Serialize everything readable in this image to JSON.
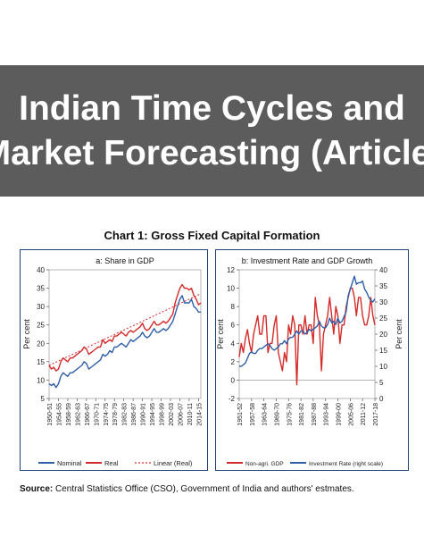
{
  "banner": {
    "line1": "Indian Time Cycles and",
    "line2": "Market Forecasting (Article)"
  },
  "chart_title": "Chart 1: Gross Fixed Capital Formation",
  "source": {
    "label": "Source:",
    "text": "Central Statistics Office (CSO), Government of India and authors' estmates."
  },
  "colors": {
    "banner_bg": "#5c5c5c",
    "nominal": "#2e5fa8",
    "real": "#d42a2a",
    "linear": "#d42a2a",
    "investment": "#2e5fa8",
    "gdp": "#d42a2a",
    "border": "#1f3f7a"
  },
  "chart_data": [
    {
      "type": "line",
      "title": "a: Share in GDP",
      "ylabel": "Per cent",
      "ylim": [
        5,
        40
      ],
      "yticks": [
        5,
        10,
        15,
        20,
        25,
        30,
        35,
        40
      ],
      "x": [
        "1950-51",
        "1951-52",
        "1952-53",
        "1953-54",
        "1954-55",
        "1955-56",
        "1956-57",
        "1957-58",
        "1958-59",
        "1959-60",
        "1960-61",
        "1961-62",
        "1962-63",
        "1963-64",
        "1964-65",
        "1965-66",
        "1966-67",
        "1967-68",
        "1968-69",
        "1969-70",
        "1970-71",
        "1971-72",
        "1972-73",
        "1973-74",
        "1974-75",
        "1975-76",
        "1976-77",
        "1977-78",
        "1978-79",
        "1979-80",
        "1980-81",
        "1981-82",
        "1982-83",
        "1983-84",
        "1984-85",
        "1985-86",
        "1986-87",
        "1987-88",
        "1988-89",
        "1989-90",
        "1990-91",
        "1991-92",
        "1992-93",
        "1993-94",
        "1994-95",
        "1995-96",
        "1996-97",
        "1997-98",
        "1998-99",
        "1999-00",
        "2000-01",
        "2001-02",
        "2002-03",
        "2003-04",
        "2004-05",
        "2005-06",
        "2006-07",
        "2007-08",
        "2008-09",
        "2009-10",
        "2010-11",
        "2011-12",
        "2012-13",
        "2013-14",
        "2014-15",
        "2015-16"
      ],
      "xtick_labels": [
        "1950-51",
        "1954-55",
        "1958-59",
        "1962-63",
        "1966-67",
        "1970-71",
        "1974-75",
        "1978-79",
        "1982-83",
        "1986-87",
        "1990-91",
        "1994-95",
        "1998-99",
        "2002-03",
        "2006-07",
        "2010-11",
        "2014-15"
      ],
      "series": [
        {
          "name": "Nominal",
          "style": "solid",
          "values": [
            9,
            8.5,
            9,
            8,
            9,
            11,
            12,
            11.5,
            11,
            12,
            12,
            12.5,
            13,
            13.5,
            14,
            15,
            14.5,
            13,
            13.5,
            14,
            14.5,
            15,
            15.5,
            17,
            16.5,
            17,
            18,
            17.5,
            19,
            19,
            19.5,
            20,
            19.5,
            19,
            20,
            21,
            20.5,
            21,
            21.5,
            22,
            23,
            22,
            21.5,
            22,
            23,
            24,
            23,
            23,
            23.5,
            24,
            23.5,
            24,
            25,
            26,
            28,
            30,
            32,
            33,
            31,
            31,
            31,
            32,
            30,
            29.5,
            28.5,
            28.5
          ]
        },
        {
          "name": "Real",
          "style": "solid",
          "values": [
            14,
            13,
            13.5,
            12.5,
            13,
            15,
            16,
            15.5,
            15,
            16,
            16,
            16.5,
            17,
            17.5,
            18,
            19,
            18.5,
            17,
            17.5,
            18,
            18.5,
            19,
            19,
            21,
            20,
            20.5,
            21,
            20.5,
            22,
            22,
            22.5,
            23,
            22.5,
            22,
            23,
            23.5,
            23,
            23.5,
            24,
            24.5,
            25.5,
            24,
            23.5,
            24,
            25,
            26,
            25,
            25,
            25.5,
            26,
            25.5,
            26,
            27,
            28,
            31,
            33,
            35,
            36,
            35,
            35,
            34.5,
            35,
            33,
            32,
            30.5,
            31
          ]
        },
        {
          "name": "Linear (Real)",
          "style": "dashed",
          "values": [
            14,
            14.3,
            14.6,
            14.9,
            15.2,
            15.5,
            15.8,
            16.1,
            16.4,
            16.7,
            17,
            17.3,
            17.6,
            17.9,
            18.2,
            18.5,
            18.8,
            19.1,
            19.4,
            19.7,
            20,
            20.3,
            20.6,
            20.9,
            21.2,
            21.5,
            21.8,
            22.1,
            22.4,
            22.7,
            23,
            23.3,
            23.6,
            23.9,
            24.2,
            24.5,
            24.8,
            25.1,
            25.4,
            25.7,
            26,
            26.3,
            26.6,
            26.9,
            27.2,
            27.5,
            27.8,
            28.1,
            28.4,
            28.7,
            29,
            29.3,
            29.6,
            29.9,
            30.2,
            30.5,
            30.8,
            31.1,
            31.4,
            31.7,
            32,
            32.3,
            32.6,
            32.9,
            33.2,
            33.5
          ]
        }
      ],
      "legend": [
        "Nominal",
        "Real",
        "Linear (Real)"
      ],
      "legend_position": "bottom"
    },
    {
      "type": "line",
      "title": "b: Investment Rate and GDP Growth",
      "ylabel": "Per cent",
      "ylabel_right": "Per cent",
      "ylim": [
        -2,
        12
      ],
      "yticks": [
        -2,
        0,
        2,
        4,
        6,
        8,
        10,
        12
      ],
      "ylim_right": [
        0,
        40
      ],
      "yticks_right": [
        0,
        5,
        10,
        15,
        20,
        25,
        30,
        35,
        40
      ],
      "x": [
        "1951-52",
        "1952-53",
        "1953-54",
        "1954-55",
        "1955-56",
        "1956-57",
        "1957-58",
        "1958-59",
        "1959-60",
        "1960-61",
        "1961-62",
        "1962-63",
        "1963-64",
        "1964-65",
        "1965-66",
        "1966-67",
        "1967-68",
        "1968-69",
        "1969-70",
        "1970-71",
        "1971-72",
        "1972-73",
        "1973-74",
        "1974-75",
        "1975-76",
        "1976-77",
        "1977-78",
        "1978-79",
        "1979-80",
        "1980-81",
        "1981-82",
        "1982-83",
        "1983-84",
        "1984-85",
        "1985-86",
        "1986-87",
        "1987-88",
        "1988-89",
        "1989-90",
        "1990-91",
        "1991-92",
        "1992-93",
        "1993-94",
        "1994-95",
        "1995-96",
        "1996-97",
        "1997-98",
        "1998-99",
        "1999-00",
        "2000-01",
        "2001-02",
        "2002-03",
        "2003-04",
        "2004-05",
        "2005-06",
        "2006-07",
        "2007-08",
        "2008-09",
        "2009-10",
        "2010-11",
        "2011-12",
        "2012-13",
        "2013-14",
        "2014-15",
        "2015-16",
        "2016-17",
        "2017-18"
      ],
      "xtick_labels": [
        "1951-52",
        "1957-58",
        "1963-64",
        "1969-70",
        "1975-76",
        "1981-82",
        "1987-88",
        "1993-94",
        "1999-00",
        "2005-06",
        "2011-12",
        "2017-18"
      ],
      "series": [
        {
          "name": "Non-agri. GDP",
          "axis": "left",
          "values": [
            2.5,
            4,
            3,
            4.5,
            5.5,
            4,
            3,
            5,
            6,
            7,
            5,
            5,
            7,
            7,
            3,
            4,
            4,
            6,
            7,
            3,
            2,
            1,
            3,
            2,
            6,
            5,
            7,
            6,
            -0.5,
            6,
            6,
            5,
            7,
            5,
            6,
            6,
            4,
            9,
            7,
            6,
            1,
            5,
            6,
            7,
            9,
            7,
            5,
            8,
            7,
            4,
            6,
            6,
            8,
            9,
            10,
            10,
            9,
            7,
            9,
            9,
            7,
            6,
            6,
            7,
            9,
            7,
            6
          ]
        },
        {
          "name": "Investment Rate (right scale)",
          "axis": "right",
          "values": [
            10,
            10,
            10.5,
            11,
            12.5,
            14,
            14.5,
            14,
            14,
            15,
            15.5,
            15.5,
            16,
            16.5,
            17,
            16.5,
            15.5,
            15,
            15.5,
            16,
            17,
            17,
            18,
            17,
            18.5,
            19,
            19,
            20,
            21,
            20,
            21,
            21,
            20,
            20.5,
            21.5,
            21,
            21.5,
            22,
            22.5,
            24,
            22.5,
            22,
            22,
            23,
            25,
            23.5,
            24,
            23,
            25,
            23.5,
            24,
            25.5,
            27,
            32,
            34,
            36,
            38,
            35.5,
            36,
            36,
            36.5,
            34,
            33,
            31.5,
            30.5,
            30,
            31
          ]
        }
      ],
      "legend": [
        "Non-agri. GDP",
        "Investment Rate (right scale)"
      ],
      "legend_position": "bottom"
    }
  ]
}
